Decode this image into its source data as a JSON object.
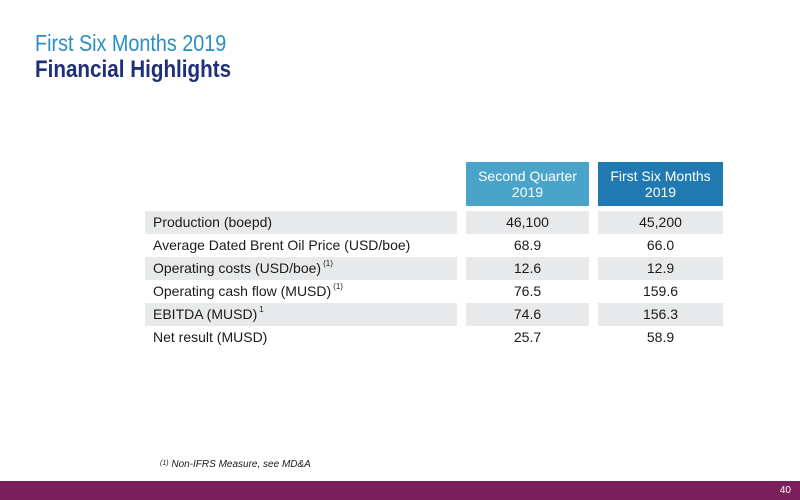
{
  "slide": {
    "subtitle": "First Six Months 2019",
    "title": "Financial Highlights"
  },
  "table": {
    "columns": [
      {
        "line1": "Second Quarter",
        "line2": "2019",
        "color": "#4aa3c9"
      },
      {
        "line1": "First Six Months",
        "line2": "2019",
        "color": "#2079b0"
      }
    ],
    "rows": [
      {
        "label": "Production (boepd)",
        "note": "",
        "q2": "46,100",
        "h1": "45,200"
      },
      {
        "label": "Average Dated Brent Oil Price (USD/boe)",
        "note": "",
        "q2": "68.9",
        "h1": "66.0"
      },
      {
        "label": "Operating costs (USD/boe)",
        "note": "(1)",
        "q2": "12.6",
        "h1": "12.9"
      },
      {
        "label": "Operating cash flow (MUSD)",
        "note": "(1)",
        "q2": "76.5",
        "h1": "159.6"
      },
      {
        "label": "EBITDA (MUSD)",
        "note": "1",
        "q2": "74.6",
        "h1": "156.3"
      },
      {
        "label": "Net result (MUSD)",
        "note": "",
        "q2": "25.7",
        "h1": "58.9"
      }
    ]
  },
  "footnote": {
    "marker": "(1)",
    "text": "Non-IFRS Measure, see MD&A"
  },
  "footer": {
    "page_number": "40",
    "color": "#7a1f5c"
  }
}
